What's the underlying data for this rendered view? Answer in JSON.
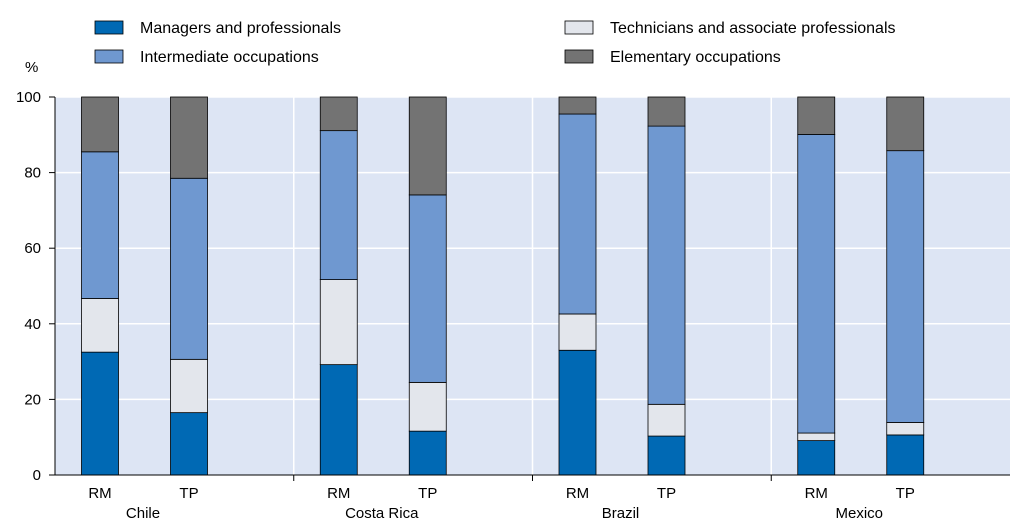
{
  "chart_data": {
    "type": "bar",
    "stacked": true,
    "y_unit_label": "%",
    "ylim": [
      0,
      100
    ],
    "y_ticks": [
      0,
      20,
      40,
      60,
      80,
      100
    ],
    "grid": true,
    "legend_placement": "top",
    "groups": [
      {
        "name": "Chile",
        "categories": [
          "RM",
          "TP"
        ]
      },
      {
        "name": "Costa Rica",
        "categories": [
          "RM",
          "TP"
        ]
      },
      {
        "name": "Brazil",
        "categories": [
          "RM",
          "TP"
        ]
      },
      {
        "name": "Mexico",
        "categories": [
          "RM",
          "TP"
        ]
      }
    ],
    "series": [
      {
        "name": "Managers and professionals",
        "color": "#0069b4",
        "values": [
          32.5,
          16.5,
          29.2,
          11.6,
          33.0,
          10.3,
          9.1,
          10.6
        ]
      },
      {
        "name": "Technicians and associate professionals",
        "color": "#e3e6ec",
        "values": [
          14.2,
          14.1,
          22.5,
          12.9,
          9.6,
          8.4,
          2.0,
          3.3
        ]
      },
      {
        "name": "Intermediate occupations",
        "color": "#6f98d0",
        "values": [
          38.8,
          47.9,
          39.4,
          49.6,
          52.9,
          73.6,
          79.0,
          71.9
        ]
      },
      {
        "name": "Elementary occupations",
        "color": "#737373",
        "values": [
          14.5,
          21.5,
          8.9,
          25.9,
          4.5,
          7.7,
          9.9,
          14.2
        ]
      }
    ]
  },
  "colors": {
    "plot_background": "#dde5f4",
    "gridline": "#ffffff",
    "legend_box_border": "#000000"
  }
}
